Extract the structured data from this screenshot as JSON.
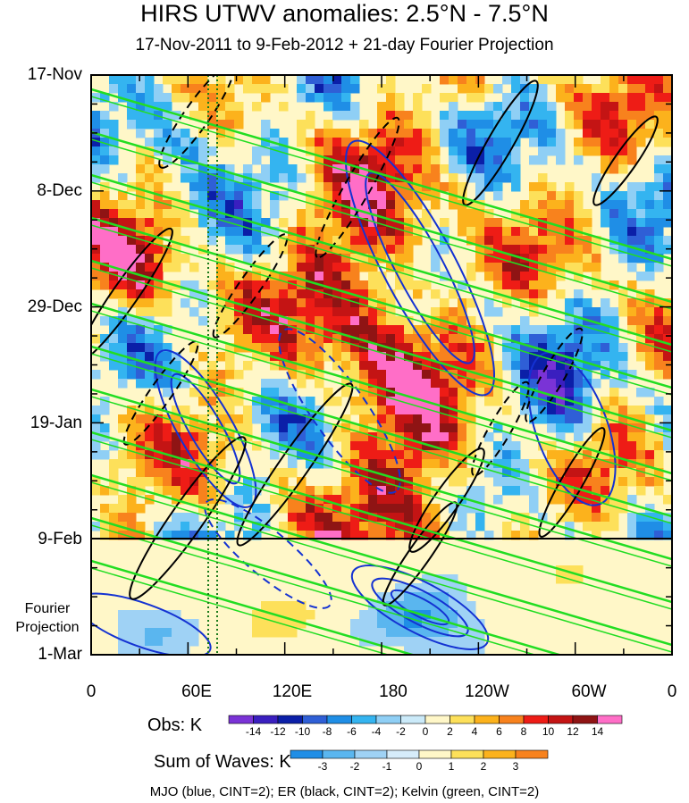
{
  "title": "HIRS UTWV anomalies: 2.5°N - 7.5°N",
  "subtitle": "17-Nov-2011 to 9-Feb-2012 + 21-day Fourier Projection",
  "y_labels": [
    "17-Nov",
    "8-Dec",
    "29-Dec",
    "19-Jan",
    "9-Feb",
    "1-Mar"
  ],
  "fourier_label_1": "Fourier",
  "fourier_label_2": "Projection",
  "x_labels": [
    "0",
    "60E",
    "120E",
    "180",
    "120W",
    "60W",
    "0"
  ],
  "obs_label": "Obs: K",
  "obs_levels": [
    "-14",
    "-12",
    "-10",
    "-8",
    "-6",
    "-4",
    "-2",
    "0",
    "2",
    "4",
    "6",
    "8",
    "10",
    "12",
    "14"
  ],
  "obs_colors": [
    "#7a33d6",
    "#3a1fbf",
    "#0b1fa8",
    "#2f5fd6",
    "#1f8ee6",
    "#34b4f0",
    "#8fcff5",
    "#cbeaf9",
    "#fff7c8",
    "#fde05a",
    "#fcb21c",
    "#f8821d",
    "#ee1c16",
    "#c41414",
    "#8f1414",
    "#ff6ec7"
  ],
  "waves_label": "Sum of Waves: K",
  "waves_levels": [
    "-3",
    "-2",
    "-1",
    "0",
    "1",
    "2",
    "3"
  ],
  "waves_colors": [
    "#1f8ee6",
    "#5ab6ef",
    "#9fd2f5",
    "#d6ecfa",
    "#fff7c8",
    "#fde05a",
    "#fcb21c",
    "#f8821d"
  ],
  "footer": "MJO (blue, CINT=2); ER (black, CINT=2); Kelvin (green, CINT=2)",
  "chart_data": {
    "type": "heatmap",
    "title": "HIRS UTWV anomalies: 2.5°N - 7.5°N",
    "subtitle": "17-Nov-2011 to 9-Feb-2012 + 21-day Fourier Projection",
    "x_axis": {
      "ticks": [
        "0",
        "60E",
        "120E",
        "180",
        "120W",
        "60W",
        "0"
      ],
      "range_deg": [
        0,
        360
      ]
    },
    "y_axis": {
      "ticks": [
        "17-Nov",
        "8-Dec",
        "29-Dec",
        "19-Jan",
        "9-Feb",
        "1-Mar"
      ],
      "range": [
        "17-Nov-2011",
        "1-Mar-2012"
      ]
    },
    "observation_end": "9-Feb",
    "obs_colorbar_levels_K": [
      -14,
      -12,
      -10,
      -8,
      -6,
      -4,
      -2,
      0,
      2,
      4,
      6,
      8,
      10,
      12,
      14
    ],
    "waves_colorbar_levels_K": [
      -3,
      -2,
      -1,
      0,
      1,
      2,
      3
    ],
    "contours": [
      {
        "name": "MJO",
        "color": "blue",
        "cint": 2
      },
      {
        "name": "ER",
        "color": "black",
        "cint": 2
      },
      {
        "name": "Kelvin",
        "color": "green",
        "cint": 2
      }
    ]
  }
}
